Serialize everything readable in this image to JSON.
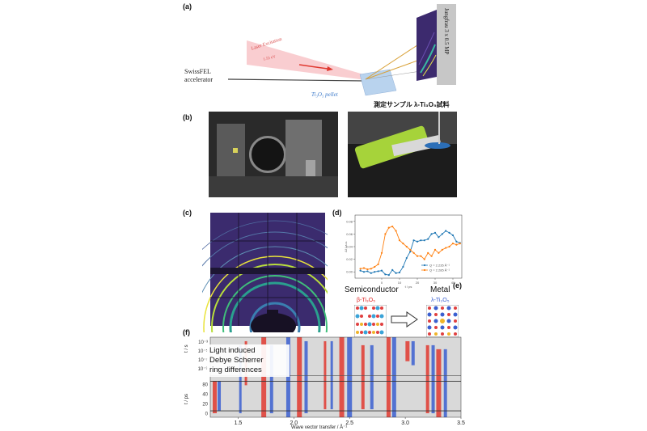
{
  "panel_a": {
    "label": "(a)",
    "source_line1": "SwissFEL",
    "source_line2": "accelerator",
    "laser_label": "Laser Excitation",
    "laser_energy": "1.55 eV",
    "sample_label": "Ti₃O₅ pellet",
    "detector_label": "Jungfrau 3 x 0.5 MP"
  },
  "panel_b": {
    "label": "(b)",
    "sample_caption": "測定サンプル λ-Ti₃O₅試料"
  },
  "panel_c": {
    "label": "(c)"
  },
  "panel_d": {
    "label": "(d)"
  },
  "panel_e": {
    "label": "(e)",
    "left_title": "Semiconductor",
    "left_phase": "β-Ti₃O₅",
    "right_title": "Metal",
    "right_phase": "λ-Ti₃O₅"
  },
  "panel_f": {
    "label": "(f)",
    "annotation_lines": [
      "Light induced",
      "Debye Scherrer",
      "ring differences"
    ],
    "ylabel_top": "t / s",
    "ylabel_bottom": "t / ps",
    "xlabel": "Wave vector transfer / Å⁻¹"
  },
  "chart_data": [
    {
      "type": "line",
      "panel": "(d)",
      "xlabel": "t / ps",
      "ylabel": "ΔI / a.u.",
      "xlim": [
        -15,
        45
      ],
      "ylim": [
        -0.01,
        0.09
      ],
      "xticks": [
        "0",
        "10",
        "20",
        "30",
        "40"
      ],
      "yticks": [
        "0.00",
        "0.02",
        "0.04",
        "0.06",
        "0.08"
      ],
      "legend_position": "bottom-right",
      "series": [
        {
          "name": "Q = 2.235 Å⁻¹",
          "color": "#1f77b4",
          "x": [
            -12,
            -10,
            -8,
            -6,
            -4,
            -2,
            0,
            2,
            4,
            6,
            8,
            10,
            12,
            14,
            16,
            18,
            20,
            22,
            24,
            26,
            28,
            30,
            32,
            34,
            36,
            38,
            40,
            42,
            44
          ],
          "y": [
            0.002,
            0.0,
            0.001,
            -0.002,
            0.0,
            0.001,
            0.002,
            -0.004,
            -0.005,
            0.003,
            -0.002,
            -0.001,
            0.008,
            0.022,
            0.032,
            0.05,
            0.048,
            0.05,
            0.05,
            0.052,
            0.06,
            0.062,
            0.055,
            0.06,
            0.065,
            0.062,
            0.058,
            0.048,
            0.046
          ]
        },
        {
          "name": "Q = 2.285 Å⁻¹",
          "color": "#ff7f0e",
          "x": [
            -12,
            -10,
            -8,
            -6,
            -4,
            -2,
            0,
            2,
            4,
            6,
            8,
            10,
            12,
            14,
            16,
            18,
            20,
            22,
            24,
            26,
            28,
            30,
            32,
            34,
            36,
            38,
            40,
            42,
            44
          ],
          "y": [
            0.005,
            0.006,
            0.004,
            0.005,
            0.008,
            0.012,
            0.03,
            0.06,
            0.07,
            0.072,
            0.065,
            0.05,
            0.045,
            0.04,
            0.035,
            0.03,
            0.025,
            0.025,
            0.02,
            0.03,
            0.025,
            0.035,
            0.03,
            0.035,
            0.038,
            0.04,
            0.045,
            0.043,
            0.045
          ]
        }
      ]
    },
    {
      "type": "heatmap",
      "panel": "(f)",
      "xlabel": "Wave vector transfer / Å⁻¹",
      "xlim": [
        1.25,
        3.5
      ],
      "xticks": [
        "1.5",
        "2.0",
        "2.5",
        "3.0",
        "3.5"
      ],
      "yticks_top": [
        "10⁻³",
        "10⁻⁵",
        "10⁻⁷",
        "10⁻⁹"
      ],
      "yticks_bottom": [
        "80",
        "40",
        "20",
        "0"
      ]
    }
  ]
}
